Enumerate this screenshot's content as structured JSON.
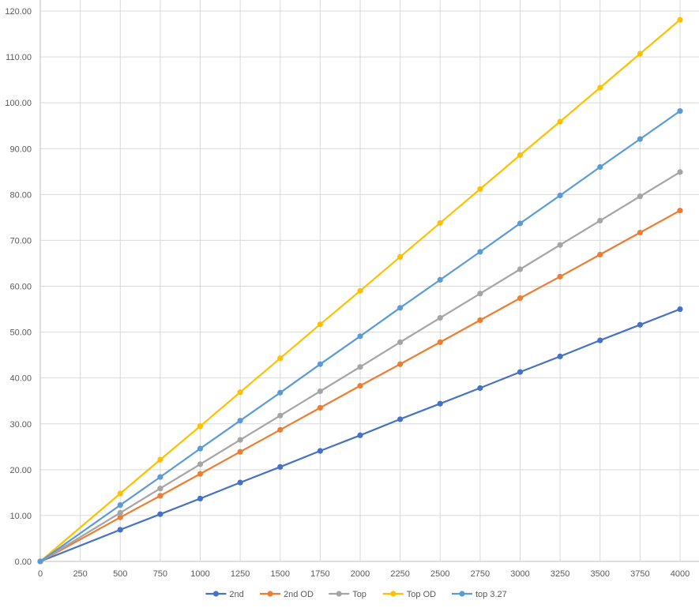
{
  "chart_data": {
    "type": "line",
    "title": "",
    "xlabel": "",
    "ylabel": "",
    "x": [
      0,
      500,
      750,
      1000,
      1250,
      1500,
      1750,
      2000,
      2250,
      2500,
      2750,
      3000,
      3250,
      3500,
      3750,
      4000
    ],
    "x_ticks": [
      "0",
      "250",
      "500",
      "750",
      "1000",
      "1250",
      "1500",
      "1750",
      "2000",
      "2250",
      "2500",
      "2750",
      "3000",
      "3250",
      "3500",
      "3750",
      "4000"
    ],
    "y_ticks": [
      "0.00",
      "10.00",
      "20.00",
      "30.00",
      "40.00",
      "50.00",
      "60.00",
      "70.00",
      "80.00",
      "90.00",
      "100.00",
      "110.00",
      "120.00"
    ],
    "xlim": [
      0,
      4000
    ],
    "ylim": [
      0,
      120
    ],
    "grid": true,
    "legend_position": "bottom",
    "series": [
      {
        "name": "2nd",
        "color": "#4472c4",
        "values": [
          0,
          6.9,
          10.3,
          13.7,
          17.2,
          20.6,
          24.1,
          27.5,
          31.0,
          34.4,
          37.8,
          41.3,
          44.7,
          48.2,
          51.6,
          55.0
        ]
      },
      {
        "name": "2nd OD",
        "color": "#ed7d31",
        "values": [
          0,
          9.6,
          14.3,
          19.1,
          23.9,
          28.7,
          33.5,
          38.3,
          43.0,
          47.8,
          52.6,
          57.4,
          62.1,
          66.9,
          71.7,
          76.5
        ]
      },
      {
        "name": "Top",
        "color": "#a5a5a5",
        "values": [
          0,
          10.6,
          15.9,
          21.2,
          26.5,
          31.8,
          37.1,
          42.4,
          47.8,
          53.1,
          58.4,
          63.7,
          69.0,
          74.3,
          79.6,
          84.9
        ]
      },
      {
        "name": "Top OD",
        "color": "#ffc000",
        "values": [
          0,
          14.8,
          22.2,
          29.5,
          36.9,
          44.3,
          51.7,
          59.0,
          66.4,
          73.8,
          81.2,
          88.6,
          95.9,
          103.3,
          110.7,
          118.1
        ]
      },
      {
        "name": "top 3.27",
        "color": "#5b9bd5",
        "values": [
          0,
          12.3,
          18.4,
          24.6,
          30.7,
          36.8,
          43.0,
          49.1,
          55.3,
          61.4,
          67.5,
          73.7,
          79.8,
          86.0,
          92.1,
          98.2
        ]
      }
    ]
  }
}
